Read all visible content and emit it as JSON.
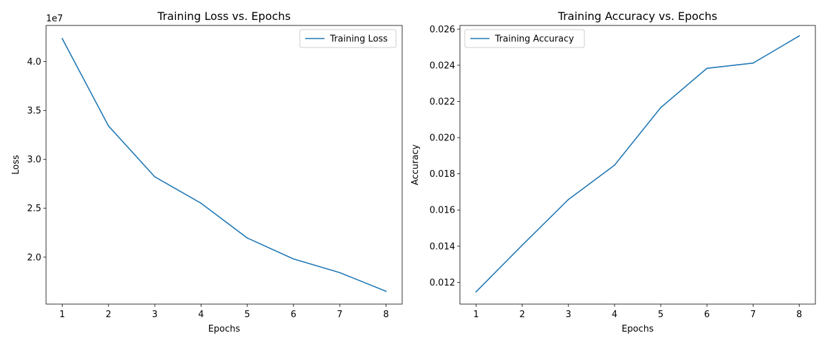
{
  "chart_data": [
    {
      "type": "line",
      "title": "Training Loss vs. Epochs",
      "xlabel": "Epochs",
      "ylabel": "Loss",
      "y_offset_label": "1e7",
      "x": [
        1,
        2,
        3,
        4,
        5,
        6,
        7,
        8
      ],
      "xticks": [
        "1",
        "2",
        "3",
        "4",
        "5",
        "6",
        "7",
        "8"
      ],
      "yticks": [
        {
          "value": 20000000,
          "label": "2.0"
        },
        {
          "value": 25000000,
          "label": "2.5"
        },
        {
          "value": 30000000,
          "label": "3.0"
        },
        {
          "value": 35000000,
          "label": "3.5"
        },
        {
          "value": 40000000,
          "label": "4.0"
        }
      ],
      "xlim": [
        0.65,
        8.35
      ],
      "ylim": [
        15200000,
        43700000
      ],
      "grid": false,
      "legend_position": "upper right",
      "series": [
        {
          "name": "Training Loss",
          "color": "#1f77b4",
          "values": [
            42350000,
            33420000,
            28220000,
            25520000,
            21960000,
            19820000,
            18420000,
            16510000
          ]
        }
      ]
    },
    {
      "type": "line",
      "title": "Training Accuracy vs. Epochs",
      "xlabel": "Epochs",
      "ylabel": "Accuracy",
      "x": [
        1,
        2,
        3,
        4,
        5,
        6,
        7,
        8
      ],
      "xticks": [
        "1",
        "2",
        "3",
        "4",
        "5",
        "6",
        "7",
        "8"
      ],
      "yticks": [
        {
          "value": 0.012,
          "label": "0.012"
        },
        {
          "value": 0.014,
          "label": "0.014"
        },
        {
          "value": 0.016,
          "label": "0.016"
        },
        {
          "value": 0.018,
          "label": "0.018"
        },
        {
          "value": 0.02,
          "label": "0.020"
        },
        {
          "value": 0.022,
          "label": "0.022"
        },
        {
          "value": 0.024,
          "label": "0.024"
        },
        {
          "value": 0.026,
          "label": "0.026"
        }
      ],
      "xlim": [
        0.65,
        8.35
      ],
      "ylim": [
        0.0108,
        0.0262
      ],
      "grid": false,
      "legend_position": "upper left",
      "series": [
        {
          "name": "Training Accuracy",
          "color": "#1f77b4",
          "values": [
            0.01148,
            0.01406,
            0.01658,
            0.01848,
            0.02166,
            0.02383,
            0.02412,
            0.02562
          ]
        }
      ]
    }
  ]
}
